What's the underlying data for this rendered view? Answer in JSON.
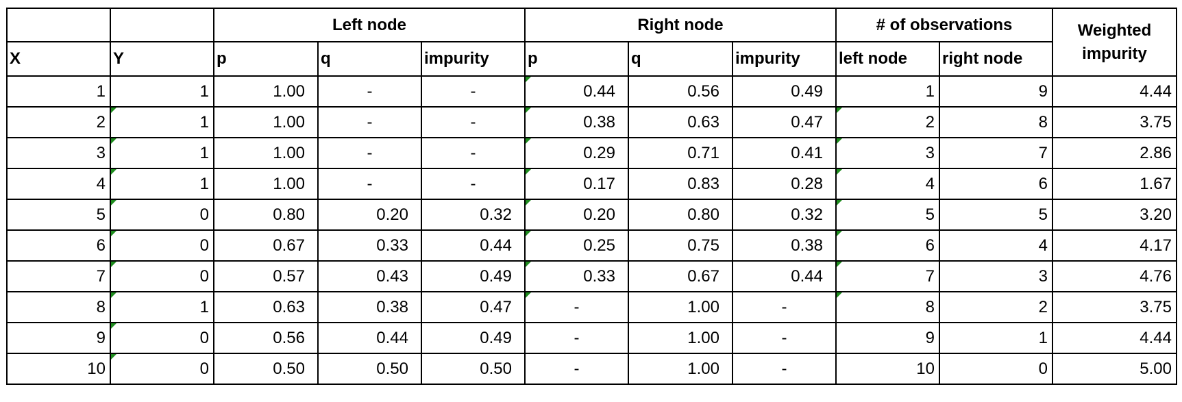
{
  "table": {
    "header_groups": [
      "Left node",
      "Right node",
      "# of observations",
      "Weighted impurity"
    ],
    "columns": [
      "X",
      "Y",
      "p",
      "q",
      "impurity",
      "p",
      "q",
      "impurity",
      "left node",
      "right node"
    ],
    "rows": [
      [
        "1",
        "1",
        "1.00",
        "-",
        "-",
        "0.44",
        "0.56",
        "0.49",
        "1",
        "9",
        "4.44"
      ],
      [
        "2",
        "1",
        "1.00",
        "-",
        "-",
        "0.38",
        "0.63",
        "0.47",
        "2",
        "8",
        "3.75"
      ],
      [
        "3",
        "1",
        "1.00",
        "-",
        "-",
        "0.29",
        "0.71",
        "0.41",
        "3",
        "7",
        "2.86"
      ],
      [
        "4",
        "1",
        "1.00",
        "-",
        "-",
        "0.17",
        "0.83",
        "0.28",
        "4",
        "6",
        "1.67"
      ],
      [
        "5",
        "0",
        "0.80",
        "0.20",
        "0.32",
        "0.20",
        "0.80",
        "0.32",
        "5",
        "5",
        "3.20"
      ],
      [
        "6",
        "0",
        "0.67",
        "0.33",
        "0.44",
        "0.25",
        "0.75",
        "0.38",
        "6",
        "4",
        "4.17"
      ],
      [
        "7",
        "0",
        "0.57",
        "0.43",
        "0.49",
        "0.33",
        "0.67",
        "0.44",
        "7",
        "3",
        "4.76"
      ],
      [
        "8",
        "1",
        "0.63",
        "0.38",
        "0.47",
        "-",
        "1.00",
        "-",
        "8",
        "2",
        "3.75"
      ],
      [
        "9",
        "0",
        "0.56",
        "0.44",
        "0.49",
        "-",
        "1.00",
        "-",
        "9",
        "1",
        "4.44"
      ],
      [
        "10",
        "0",
        "0.50",
        "0.50",
        "0.50",
        "-",
        "1.00",
        "-",
        "10",
        "0",
        "5.00"
      ]
    ]
  }
}
